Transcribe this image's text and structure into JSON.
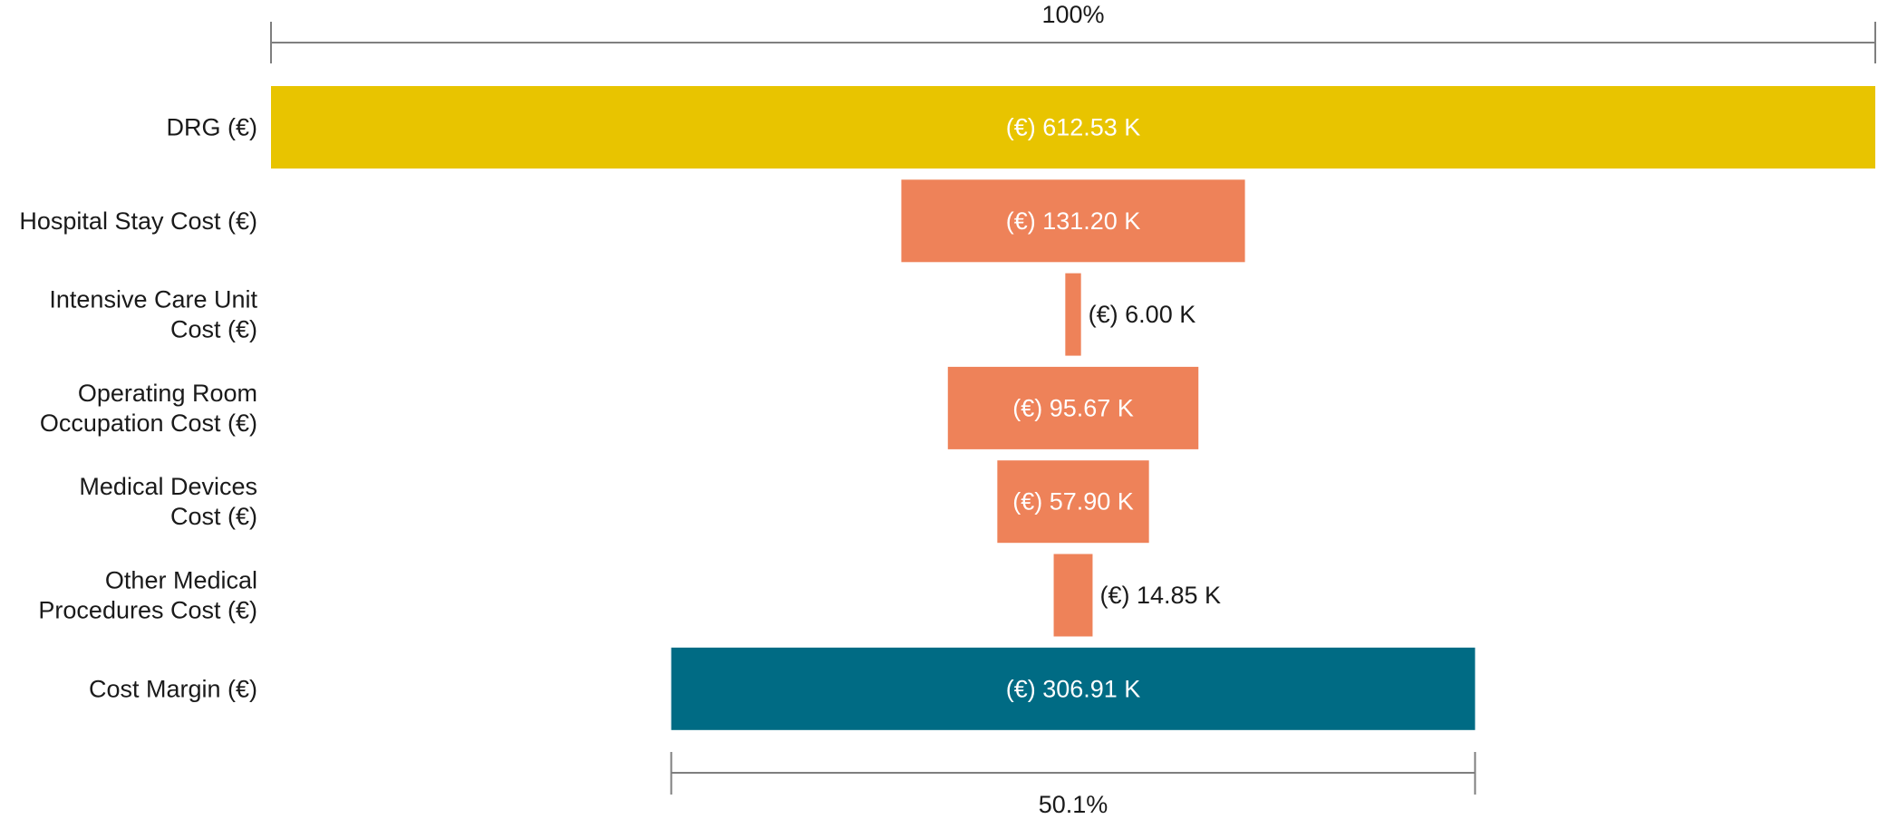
{
  "chart_data": {
    "type": "bar",
    "subtype": "funnel",
    "categories": [
      [
        "DRG (€)"
      ],
      [
        "Hospital Stay Cost (€)"
      ],
      [
        "Intensive Care Unit",
        "Cost (€)"
      ],
      [
        "Operating Room",
        "Occupation Cost (€)"
      ],
      [
        "Medical Devices",
        "Cost (€)"
      ],
      [
        "Other Medical",
        "Procedures Cost (€)"
      ],
      [
        "Cost Margin (€)"
      ]
    ],
    "values": [
      612.53,
      131.2,
      6.0,
      95.67,
      57.9,
      14.85,
      306.91
    ],
    "value_labels": [
      "(€) 612.53 K",
      "(€) 131.20 K",
      "(€) 6.00 K",
      "(€) 95.67 K",
      "(€) 57.90 K",
      "(€) 14.85 K",
      "(€) 306.91 K"
    ],
    "label_inside": [
      true,
      true,
      false,
      true,
      true,
      false,
      true
    ],
    "colors": [
      "#E8C400",
      "#EE8259",
      "#EE8259",
      "#EE8259",
      "#EE8259",
      "#EE8259",
      "#006B84"
    ],
    "top_bracket_label": "100%",
    "bottom_bracket_label": "50.1%",
    "title": "",
    "xlabel": "",
    "ylabel": "",
    "grid": false,
    "legend": "none"
  }
}
